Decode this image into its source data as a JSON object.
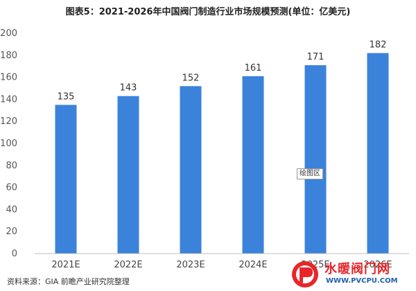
{
  "chart_data": {
    "type": "bar",
    "title": "图表5：2021-2026年中国阀门制造行业市场规模预测(单位：亿美元)",
    "categories": [
      "2021E",
      "2022E",
      "2023E",
      "2024E",
      "2025E",
      "2026E"
    ],
    "values": [
      135,
      143,
      152,
      161,
      171,
      182
    ],
    "ylim": [
      0,
      200
    ],
    "yticks": [
      0,
      20,
      40,
      60,
      80,
      100,
      120,
      140,
      160,
      180,
      200
    ],
    "bar_color": "#3b82db",
    "grid": false,
    "legend": "none"
  },
  "footer": {
    "source": "资料来源：GIA 前瞻产业研究院整理"
  },
  "overlay": {
    "tooltip": "绘图区"
  },
  "logo": {
    "name": "水暖阀门网",
    "url": "WWW.PVCPU.COM"
  }
}
